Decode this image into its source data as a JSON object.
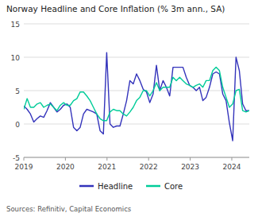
{
  "chart_data": {
    "type": "line",
    "title": "Norway Headline and Core Inflation (% 3m ann., SA)",
    "source": "Sources: Refinitiv, Capital Economics",
    "x": [
      2019,
      2019.0797,
      2019.1594,
      2019.2391,
      2019.3188,
      2019.3985,
      2019.4782,
      2019.5579,
      2019.6376,
      2019.7174,
      2019.7971,
      2019.8768,
      2019.9565,
      2020.0362,
      2020.1159,
      2020.1956,
      2020.2753,
      2020.355,
      2020.4347,
      2020.5144,
      2020.5941,
      2020.6738,
      2020.7535,
      2020.8332,
      2020.9129,
      2020.9926,
      2021.0724,
      2021.1521,
      2021.2318,
      2021.3115,
      2021.3912,
      2021.4709,
      2021.5506,
      2021.6303,
      2021.71,
      2021.7897,
      2021.8694,
      2021.9491,
      2022.0288,
      2022.1085,
      2022.1882,
      2022.2679,
      2022.3476,
      2022.4274,
      2022.5071,
      2022.5868,
      2022.6665,
      2022.7462,
      2022.8259,
      2022.9056,
      2022.9853,
      2023.065,
      2023.1447,
      2023.2244,
      2023.3041,
      2023.3838,
      2023.4635,
      2023.5432,
      2023.6229,
      2023.7026,
      2023.7824,
      2023.8621,
      2023.9418,
      2024.0215,
      2024.1012,
      2024.1809,
      2024.2606,
      2024.3403,
      2024.42
    ],
    "series": [
      {
        "name": "Headline",
        "color": "#3333bb",
        "values": [
          2.7,
          2.2,
          1.5,
          0.3,
          0.8,
          1.2,
          1.0,
          2.0,
          3.2,
          2.5,
          1.8,
          2.2,
          2.8,
          3.0,
          2.5,
          -0.5,
          -1.0,
          -0.5,
          1.5,
          2.2,
          2.0,
          1.8,
          1.5,
          -1.0,
          -1.5,
          10.7,
          0.0,
          -0.5,
          -0.3,
          -0.3,
          1.5,
          3.5,
          6.5,
          6.0,
          7.5,
          6.5,
          5.2,
          4.8,
          3.2,
          4.5,
          8.8,
          5.0,
          6.5,
          5.5,
          4.2,
          8.5,
          8.5,
          8.5,
          8.5,
          7.0,
          5.8,
          5.5,
          5.0,
          5.5,
          3.5,
          4.0,
          5.5,
          7.5,
          7.8,
          7.5,
          4.5,
          3.5,
          0.2,
          -2.5,
          10.0,
          8.0,
          3.0,
          2.0,
          2.0
        ]
      },
      {
        "name": "Core",
        "color": "#00cc99",
        "values": [
          2.2,
          3.8,
          2.5,
          2.5,
          3.0,
          3.2,
          2.5,
          2.8,
          3.0,
          2.5,
          2.0,
          2.8,
          3.2,
          2.8,
          2.8,
          3.5,
          3.8,
          4.8,
          4.8,
          4.2,
          3.5,
          2.5,
          1.5,
          0.8,
          0.5,
          0.5,
          1.8,
          2.2,
          2.0,
          2.0,
          1.5,
          1.2,
          1.8,
          2.5,
          3.5,
          4.0,
          5.0,
          5.0,
          4.2,
          5.0,
          6.2,
          5.0,
          5.5,
          5.5,
          5.5,
          7.0,
          6.5,
          7.0,
          6.5,
          6.0,
          5.8,
          5.5,
          5.8,
          6.0,
          5.5,
          6.5,
          6.5,
          8.0,
          8.5,
          8.0,
          5.5,
          4.0,
          2.5,
          3.0,
          5.0,
          5.2,
          2.0,
          1.8,
          2.0
        ]
      }
    ],
    "xlim": [
      2019,
      2024.42
    ],
    "xticks": [
      2019,
      2020,
      2021,
      2022,
      2023,
      2024
    ],
    "ylim": [
      -5,
      15
    ],
    "yticks": [
      -5,
      0,
      5,
      10,
      15
    ],
    "grid": true,
    "legend": "bottom"
  }
}
